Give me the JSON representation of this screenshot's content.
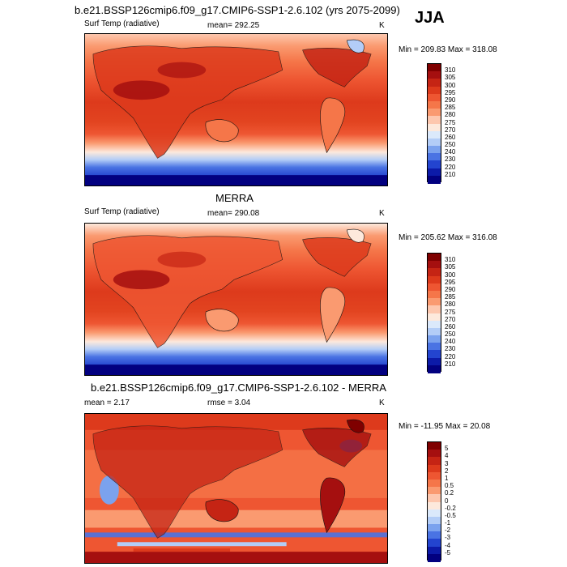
{
  "season": "JJA",
  "panels": [
    {
      "title": "b.e21.BSSP126cmip6.f09_g17.CMIP6-SSP1-2.6.102 (yrs 2075-2099)",
      "left_label": "Surf Temp (radiative)",
      "center_label": "mean= 292.25",
      "units": "K",
      "minmax": "Min = 209.83 Max = 318.08",
      "colorbar": {
        "labels": [
          "310",
          "305",
          "300",
          "295",
          "290",
          "285",
          "280",
          "275",
          "270",
          "260",
          "250",
          "240",
          "230",
          "220",
          "210"
        ],
        "colors": [
          "#7f0000",
          "#a50f0f",
          "#c52414",
          "#dd3a1c",
          "#ee5632",
          "#f57649",
          "#fa9a70",
          "#fdc7ae",
          "#fde9dc",
          "#dbe9fb",
          "#b3cdf7",
          "#7ba2ee",
          "#4a73e3",
          "#2344cf",
          "#0c1aa8",
          "#020080"
        ]
      }
    },
    {
      "title": "MERRA",
      "left_label": "Surf Temp (radiative)",
      "center_label": "mean= 290.08",
      "units": "K",
      "minmax": "Min = 205.62 Max = 316.08",
      "colorbar": {
        "labels": [
          "310",
          "305",
          "300",
          "295",
          "290",
          "285",
          "280",
          "275",
          "270",
          "260",
          "250",
          "240",
          "230",
          "220",
          "210"
        ],
        "colors": [
          "#7f0000",
          "#a50f0f",
          "#c52414",
          "#dd3a1c",
          "#ee5632",
          "#f57649",
          "#fa9a70",
          "#fdc7ae",
          "#fde9dc",
          "#dbe9fb",
          "#b3cdf7",
          "#7ba2ee",
          "#4a73e3",
          "#2344cf",
          "#0c1aa8",
          "#020080"
        ]
      }
    },
    {
      "title": "b.e21.BSSP126cmip6.f09_g17.CMIP6-SSP1-2.6.102 - MERRA",
      "left_label": "mean =   2.17",
      "center_label": "rmse =   3.04",
      "units": "K",
      "minmax": "Min = -11.95 Max =  20.08",
      "colorbar": {
        "labels": [
          "5",
          "4",
          "3",
          "2",
          "1",
          "0.5",
          "0.2",
          "0",
          "-0.2",
          "-0.5",
          "-1",
          "-2",
          "-3",
          "-4",
          "-5"
        ],
        "colors": [
          "#7f0000",
          "#a50f0f",
          "#c52414",
          "#dd3a1c",
          "#ee5632",
          "#f57649",
          "#fa9a70",
          "#fdc7ae",
          "#fde9dc",
          "#dbe9fb",
          "#b3cdf7",
          "#7ba2ee",
          "#4a73e3",
          "#2344cf",
          "#0c1aa8",
          "#020080"
        ]
      }
    }
  ]
}
